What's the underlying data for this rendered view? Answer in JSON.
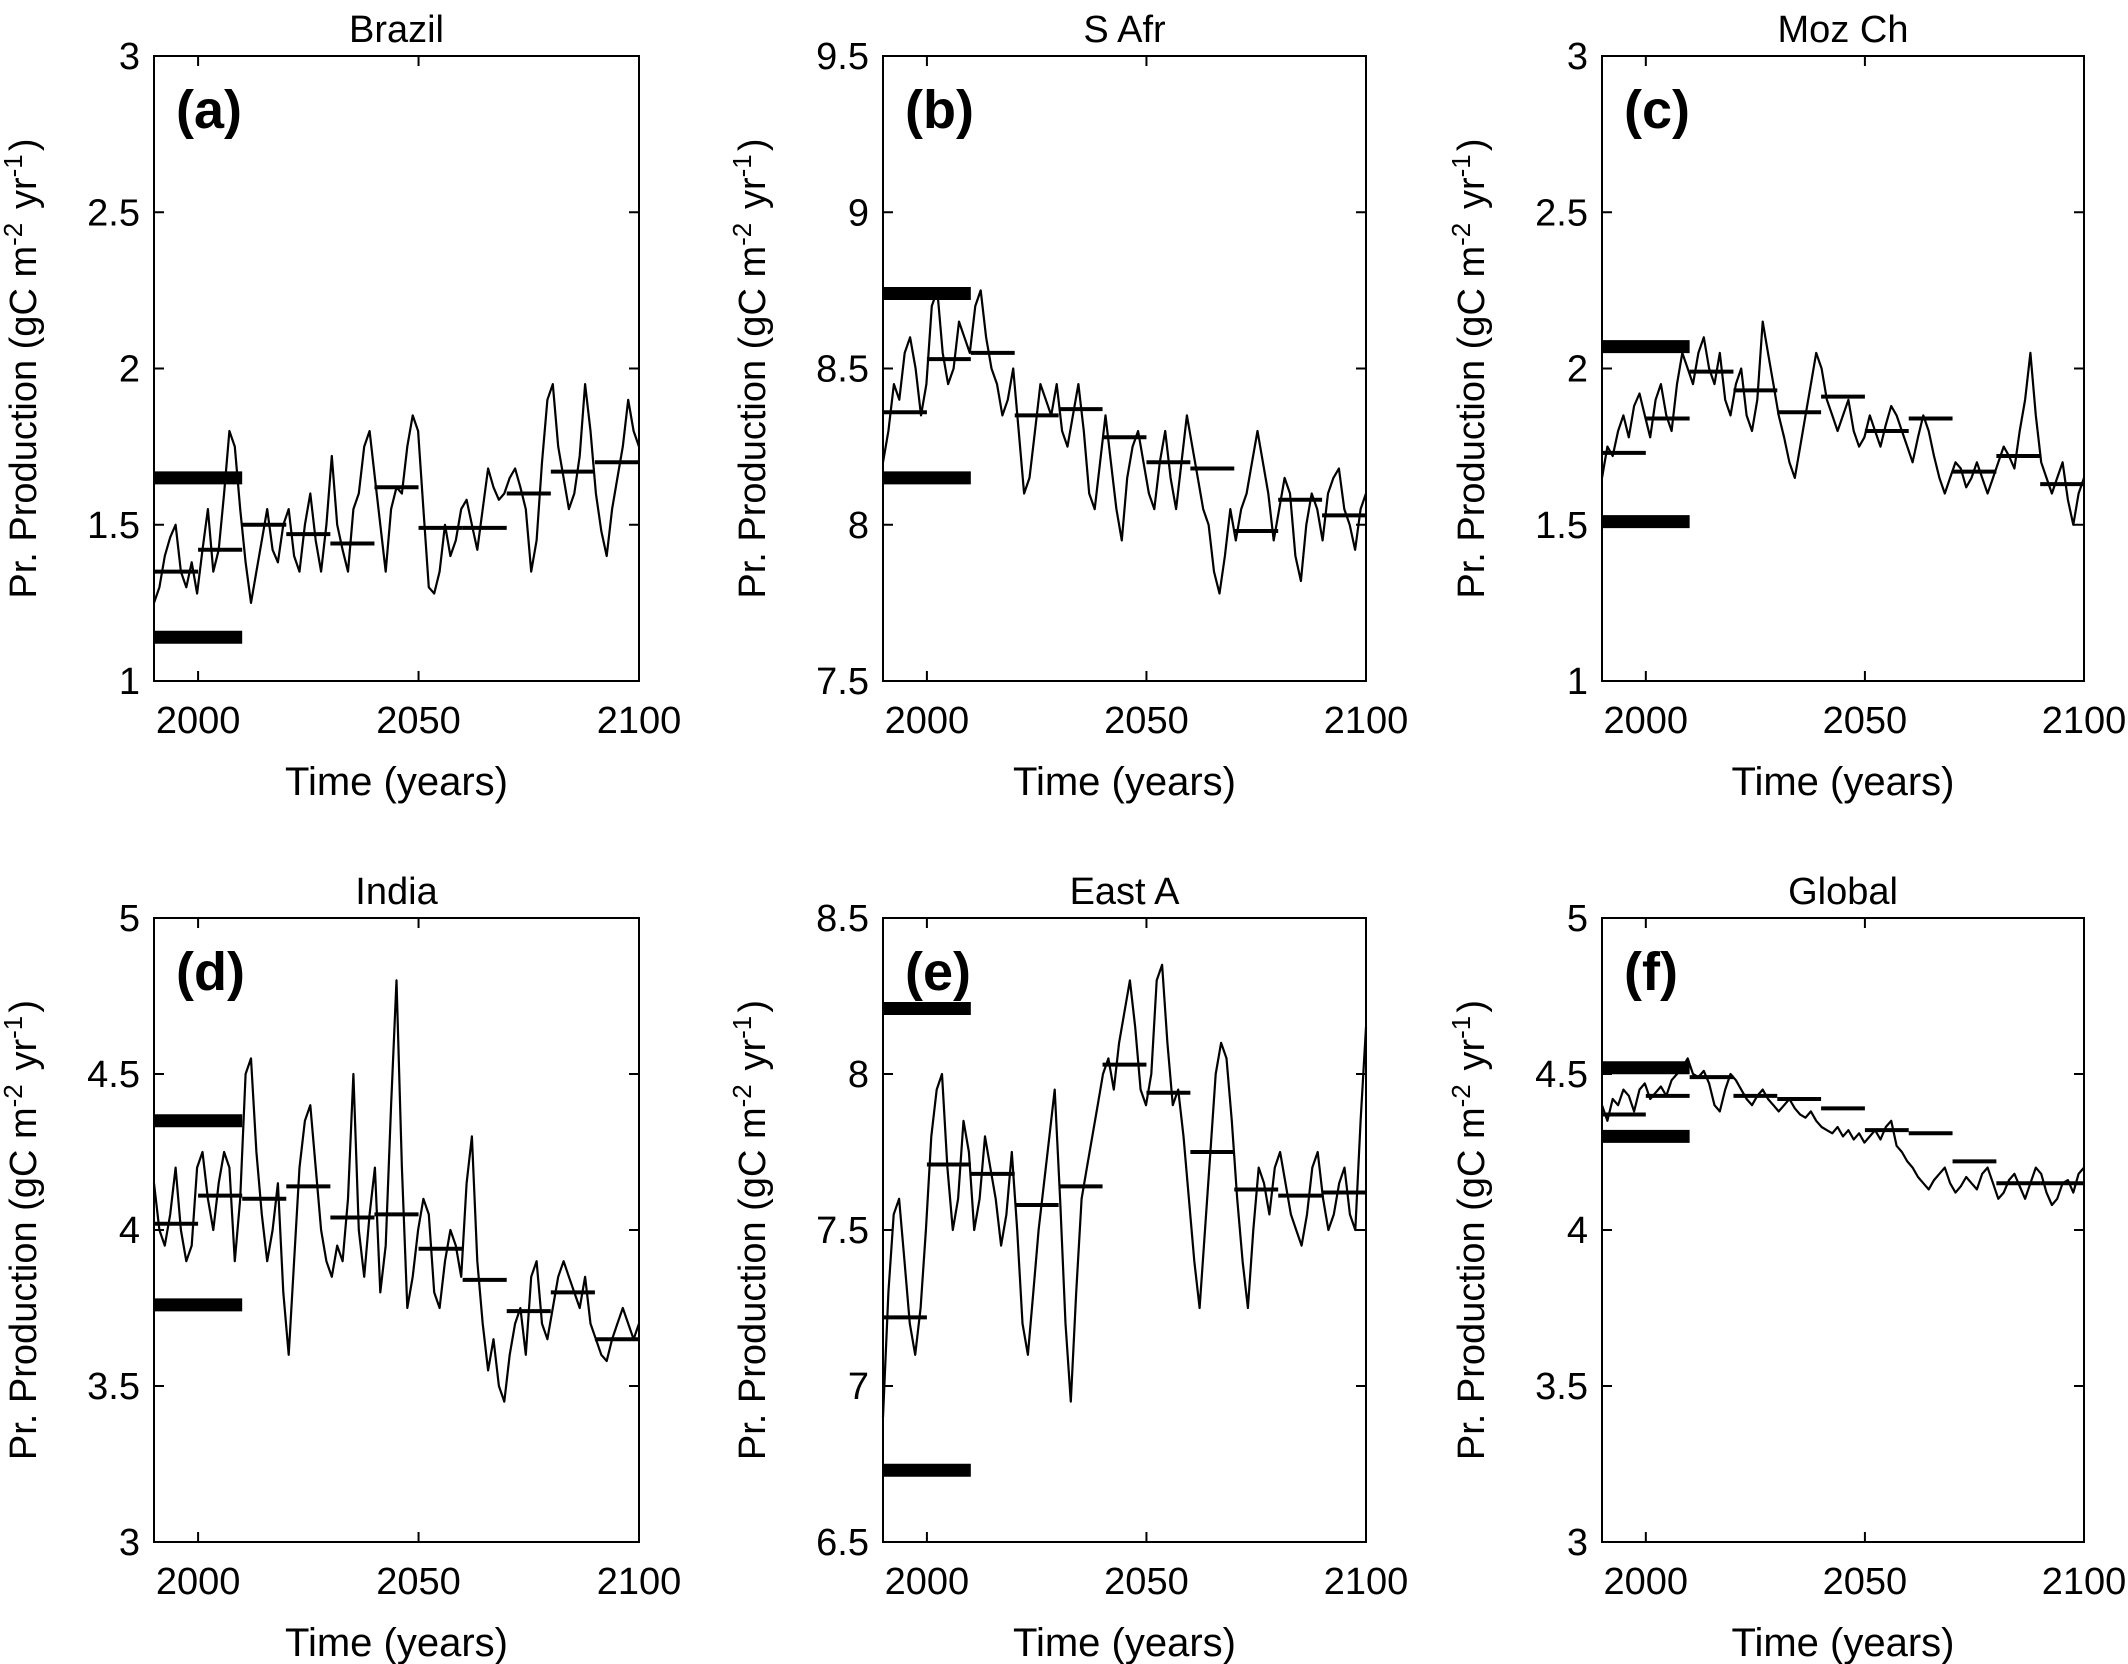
{
  "chart_data": [
    {
      "type": "line",
      "panel_label": "(a)",
      "title": "Brazil",
      "xlabel": "Time (years)",
      "ylabel": "Pr. Production (gC m^-2 yr^-1)",
      "xlim": [
        1990,
        2100
      ],
      "ylim": [
        1,
        3
      ],
      "xticks": [
        "2000",
        "2050",
        "2100"
      ],
      "yticks": [
        "1",
        "1.5",
        "2",
        "2.5",
        "3"
      ],
      "hist_bars": [
        1.65,
        1.14
      ],
      "decadal_means": [
        1.35,
        1.42,
        1.5,
        1.47,
        1.44,
        1.62,
        1.49,
        1.49,
        1.6,
        1.67,
        1.7
      ],
      "series_samples": [
        1.25,
        1.3,
        1.4,
        1.46,
        1.5,
        1.35,
        1.3,
        1.38,
        1.28,
        1.42,
        1.55,
        1.35,
        1.42,
        1.6,
        1.8,
        1.75,
        1.55,
        1.38,
        1.25,
        1.35,
        1.45,
        1.55,
        1.42,
        1.38,
        1.5,
        1.55,
        1.4,
        1.35,
        1.5,
        1.6,
        1.45,
        1.35,
        1.5,
        1.72,
        1.5,
        1.42,
        1.35,
        1.55,
        1.6,
        1.75,
        1.8,
        1.65,
        1.5,
        1.35,
        1.55,
        1.62,
        1.6,
        1.75,
        1.85,
        1.8,
        1.55,
        1.3,
        1.28,
        1.35,
        1.5,
        1.4,
        1.45,
        1.55,
        1.58,
        1.5,
        1.42,
        1.55,
        1.68,
        1.62,
        1.58,
        1.6,
        1.65,
        1.68,
        1.62,
        1.55,
        1.35,
        1.45,
        1.7,
        1.9,
        1.95,
        1.75,
        1.65,
        1.55,
        1.6,
        1.72,
        1.95,
        1.8,
        1.6,
        1.48,
        1.4,
        1.55,
        1.65,
        1.75,
        1.9,
        1.8,
        1.75
      ]
    },
    {
      "type": "line",
      "panel_label": "(b)",
      "title": "S Afr",
      "xlabel": "Time (years)",
      "ylabel": "Pr. Production (gC m^-2 yr^-1)",
      "xlim": [
        1990,
        2100
      ],
      "ylim": [
        7.5,
        9.5
      ],
      "xticks": [
        "2000",
        "2050",
        "2100"
      ],
      "yticks": [
        "7.5",
        "8",
        "8.5",
        "9",
        "9.5"
      ],
      "hist_bars": [
        8.74,
        8.15
      ],
      "decadal_means": [
        8.36,
        8.53,
        8.55,
        8.35,
        8.37,
        8.28,
        8.2,
        8.18,
        7.98,
        8.08,
        8.03
      ],
      "series_samples": [
        8.2,
        8.3,
        8.45,
        8.4,
        8.55,
        8.6,
        8.5,
        8.35,
        8.45,
        8.7,
        8.75,
        8.55,
        8.45,
        8.5,
        8.65,
        8.6,
        8.55,
        8.7,
        8.75,
        8.6,
        8.5,
        8.45,
        8.35,
        8.4,
        8.5,
        8.3,
        8.1,
        8.15,
        8.3,
        8.45,
        8.4,
        8.35,
        8.45,
        8.3,
        8.25,
        8.35,
        8.45,
        8.3,
        8.1,
        8.05,
        8.2,
        8.35,
        8.2,
        8.05,
        7.95,
        8.15,
        8.25,
        8.3,
        8.2,
        8.1,
        8.05,
        8.2,
        8.3,
        8.15,
        8.05,
        8.2,
        8.35,
        8.25,
        8.15,
        8.05,
        8.0,
        7.85,
        7.78,
        7.9,
        8.05,
        7.95,
        8.05,
        8.1,
        8.2,
        8.3,
        8.2,
        8.1,
        7.95,
        8.05,
        8.15,
        8.1,
        7.9,
        7.82,
        8.0,
        8.1,
        8.05,
        7.95,
        8.1,
        8.15,
        8.18,
        8.05,
        8.0,
        7.92,
        8.05,
        8.1
      ]
    },
    {
      "type": "line",
      "panel_label": "(c)",
      "title": "Moz Ch",
      "xlabel": "Time (years)",
      "ylabel": "Pr. Production (gC m^-2 yr^-1)",
      "xlim": [
        1990,
        2100
      ],
      "ylim": [
        1,
        3
      ],
      "xticks": [
        "2000",
        "2050",
        "2100"
      ],
      "yticks": [
        "1",
        "1.5",
        "2",
        "2.5",
        "3"
      ],
      "hist_bars": [
        2.07,
        1.51
      ],
      "decadal_means": [
        1.73,
        1.84,
        1.99,
        1.93,
        1.86,
        1.91,
        1.8,
        1.84,
        1.67,
        1.72,
        1.63
      ],
      "series_samples": [
        1.65,
        1.75,
        1.72,
        1.8,
        1.85,
        1.78,
        1.88,
        1.92,
        1.85,
        1.78,
        1.9,
        1.95,
        1.85,
        1.8,
        1.95,
        2.05,
        2.0,
        1.95,
        2.05,
        2.1,
        2.0,
        1.95,
        2.05,
        1.9,
        1.85,
        1.95,
        2.0,
        1.85,
        1.8,
        1.9,
        2.15,
        2.05,
        1.95,
        1.85,
        1.78,
        1.7,
        1.65,
        1.75,
        1.85,
        1.95,
        2.05,
        2.0,
        1.9,
        1.85,
        1.8,
        1.85,
        1.9,
        1.8,
        1.75,
        1.78,
        1.85,
        1.8,
        1.75,
        1.82,
        1.88,
        1.85,
        1.8,
        1.75,
        1.7,
        1.78,
        1.85,
        1.8,
        1.72,
        1.65,
        1.6,
        1.65,
        1.7,
        1.68,
        1.62,
        1.65,
        1.7,
        1.65,
        1.6,
        1.65,
        1.7,
        1.75,
        1.72,
        1.68,
        1.8,
        1.9,
        2.05,
        1.85,
        1.7,
        1.65,
        1.6,
        1.65,
        1.7,
        1.58,
        1.5,
        1.6,
        1.65
      ]
    },
    {
      "type": "line",
      "panel_label": "(d)",
      "title": "India",
      "xlabel": "Time (years)",
      "ylabel": "Pr. Production (gC m^-2 yr^-1)",
      "xlim": [
        1990,
        2100
      ],
      "ylim": [
        3,
        5
      ],
      "xticks": [
        "2000",
        "2050",
        "2100"
      ],
      "yticks": [
        "3",
        "3.5",
        "4",
        "4.5",
        "5"
      ],
      "hist_bars": [
        4.35,
        3.76
      ],
      "decadal_means": [
        4.02,
        4.11,
        4.1,
        4.14,
        4.04,
        4.05,
        3.94,
        3.84,
        3.74,
        3.8,
        3.65
      ],
      "series_samples": [
        4.15,
        4.0,
        3.95,
        4.05,
        4.2,
        4.0,
        3.9,
        3.95,
        4.2,
        4.25,
        4.1,
        4.0,
        4.15,
        4.25,
        4.2,
        3.9,
        4.1,
        4.5,
        4.55,
        4.25,
        4.05,
        3.9,
        4.0,
        4.15,
        3.8,
        3.6,
        3.9,
        4.2,
        4.35,
        4.4,
        4.2,
        4.0,
        3.9,
        3.85,
        3.95,
        3.9,
        4.1,
        4.5,
        4.0,
        3.85,
        4.05,
        4.2,
        3.8,
        3.95,
        4.4,
        4.8,
        4.2,
        3.75,
        3.85,
        4.0,
        4.1,
        4.05,
        3.8,
        3.75,
        3.9,
        4.0,
        3.95,
        3.85,
        4.15,
        4.3,
        3.9,
        3.7,
        3.55,
        3.65,
        3.5,
        3.45,
        3.6,
        3.7,
        3.75,
        3.6,
        3.85,
        3.9,
        3.7,
        3.65,
        3.75,
        3.85,
        3.9,
        3.85,
        3.8,
        3.75,
        3.85,
        3.7,
        3.65,
        3.6,
        3.58,
        3.65,
        3.7,
        3.75,
        3.7,
        3.65,
        3.7
      ]
    },
    {
      "type": "line",
      "panel_label": "(e)",
      "title": "East A",
      "xlabel": "Time (years)",
      "ylabel": "Pr. Production (gC m^-2 yr^-1)",
      "xlim": [
        1990,
        2100
      ],
      "ylim": [
        6.5,
        8.5
      ],
      "xticks": [
        "2000",
        "2050",
        "2100"
      ],
      "yticks": [
        "6.5",
        "7",
        "7.5",
        "8",
        "8.5"
      ],
      "hist_bars": [
        8.21,
        6.73
      ],
      "decadal_means": [
        7.22,
        7.71,
        7.68,
        7.58,
        7.64,
        8.03,
        7.94,
        7.75,
        7.63,
        7.61,
        7.62
      ],
      "series_samples": [
        6.9,
        7.3,
        7.55,
        7.6,
        7.4,
        7.2,
        7.1,
        7.25,
        7.5,
        7.8,
        7.95,
        8.0,
        7.7,
        7.5,
        7.6,
        7.85,
        7.75,
        7.5,
        7.6,
        7.8,
        7.7,
        7.6,
        7.45,
        7.55,
        7.75,
        7.5,
        7.2,
        7.1,
        7.3,
        7.5,
        7.65,
        7.8,
        7.95,
        7.6,
        7.2,
        6.95,
        7.3,
        7.6,
        7.7,
        7.8,
        7.9,
        8.0,
        8.05,
        7.95,
        8.1,
        8.2,
        8.3,
        8.15,
        7.95,
        7.9,
        8.0,
        8.3,
        8.35,
        8.1,
        7.9,
        7.95,
        7.8,
        7.6,
        7.4,
        7.25,
        7.5,
        7.75,
        8.0,
        8.1,
        8.05,
        7.85,
        7.6,
        7.4,
        7.25,
        7.5,
        7.7,
        7.65,
        7.55,
        7.7,
        7.75,
        7.65,
        7.55,
        7.5,
        7.45,
        7.55,
        7.7,
        7.75,
        7.6,
        7.5,
        7.55,
        7.65,
        7.7,
        7.55,
        7.5,
        7.85,
        8.15
      ]
    },
    {
      "type": "line",
      "panel_label": "(f)",
      "title": "Global",
      "xlabel": "Time (years)",
      "ylabel": "Pr. Production (gC m^-2 yr^-1)",
      "xlim": [
        1990,
        2100
      ],
      "ylim": [
        3,
        5
      ],
      "xticks": [
        "2000",
        "2050",
        "2100"
      ],
      "yticks": [
        "3",
        "3.5",
        "4",
        "4.5",
        "5"
      ],
      "hist_bars": [
        4.52,
        4.3
      ],
      "decadal_means": [
        4.37,
        4.43,
        4.49,
        4.43,
        4.42,
        4.39,
        4.32,
        4.31,
        4.22,
        4.15,
        4.15
      ],
      "series_samples": [
        4.4,
        4.35,
        4.42,
        4.4,
        4.45,
        4.43,
        4.38,
        4.45,
        4.47,
        4.42,
        4.44,
        4.46,
        4.43,
        4.48,
        4.5,
        4.52,
        4.55,
        4.5,
        4.49,
        4.51,
        4.47,
        4.4,
        4.38,
        4.45,
        4.5,
        4.48,
        4.45,
        4.42,
        4.4,
        4.43,
        4.45,
        4.42,
        4.4,
        4.38,
        4.4,
        4.42,
        4.39,
        4.37,
        4.36,
        4.38,
        4.35,
        4.33,
        4.32,
        4.31,
        4.33,
        4.3,
        4.32,
        4.29,
        4.31,
        4.28,
        4.3,
        4.32,
        4.29,
        4.33,
        4.35,
        4.27,
        4.25,
        4.22,
        4.2,
        4.17,
        4.15,
        4.13,
        4.16,
        4.18,
        4.2,
        4.15,
        4.12,
        4.14,
        4.17,
        4.15,
        4.13,
        4.18,
        4.2,
        4.15,
        4.1,
        4.12,
        4.16,
        4.18,
        4.14,
        4.1,
        4.15,
        4.2,
        4.18,
        4.12,
        4.08,
        4.1,
        4.15,
        4.16,
        4.12,
        4.18,
        4.2
      ]
    }
  ]
}
